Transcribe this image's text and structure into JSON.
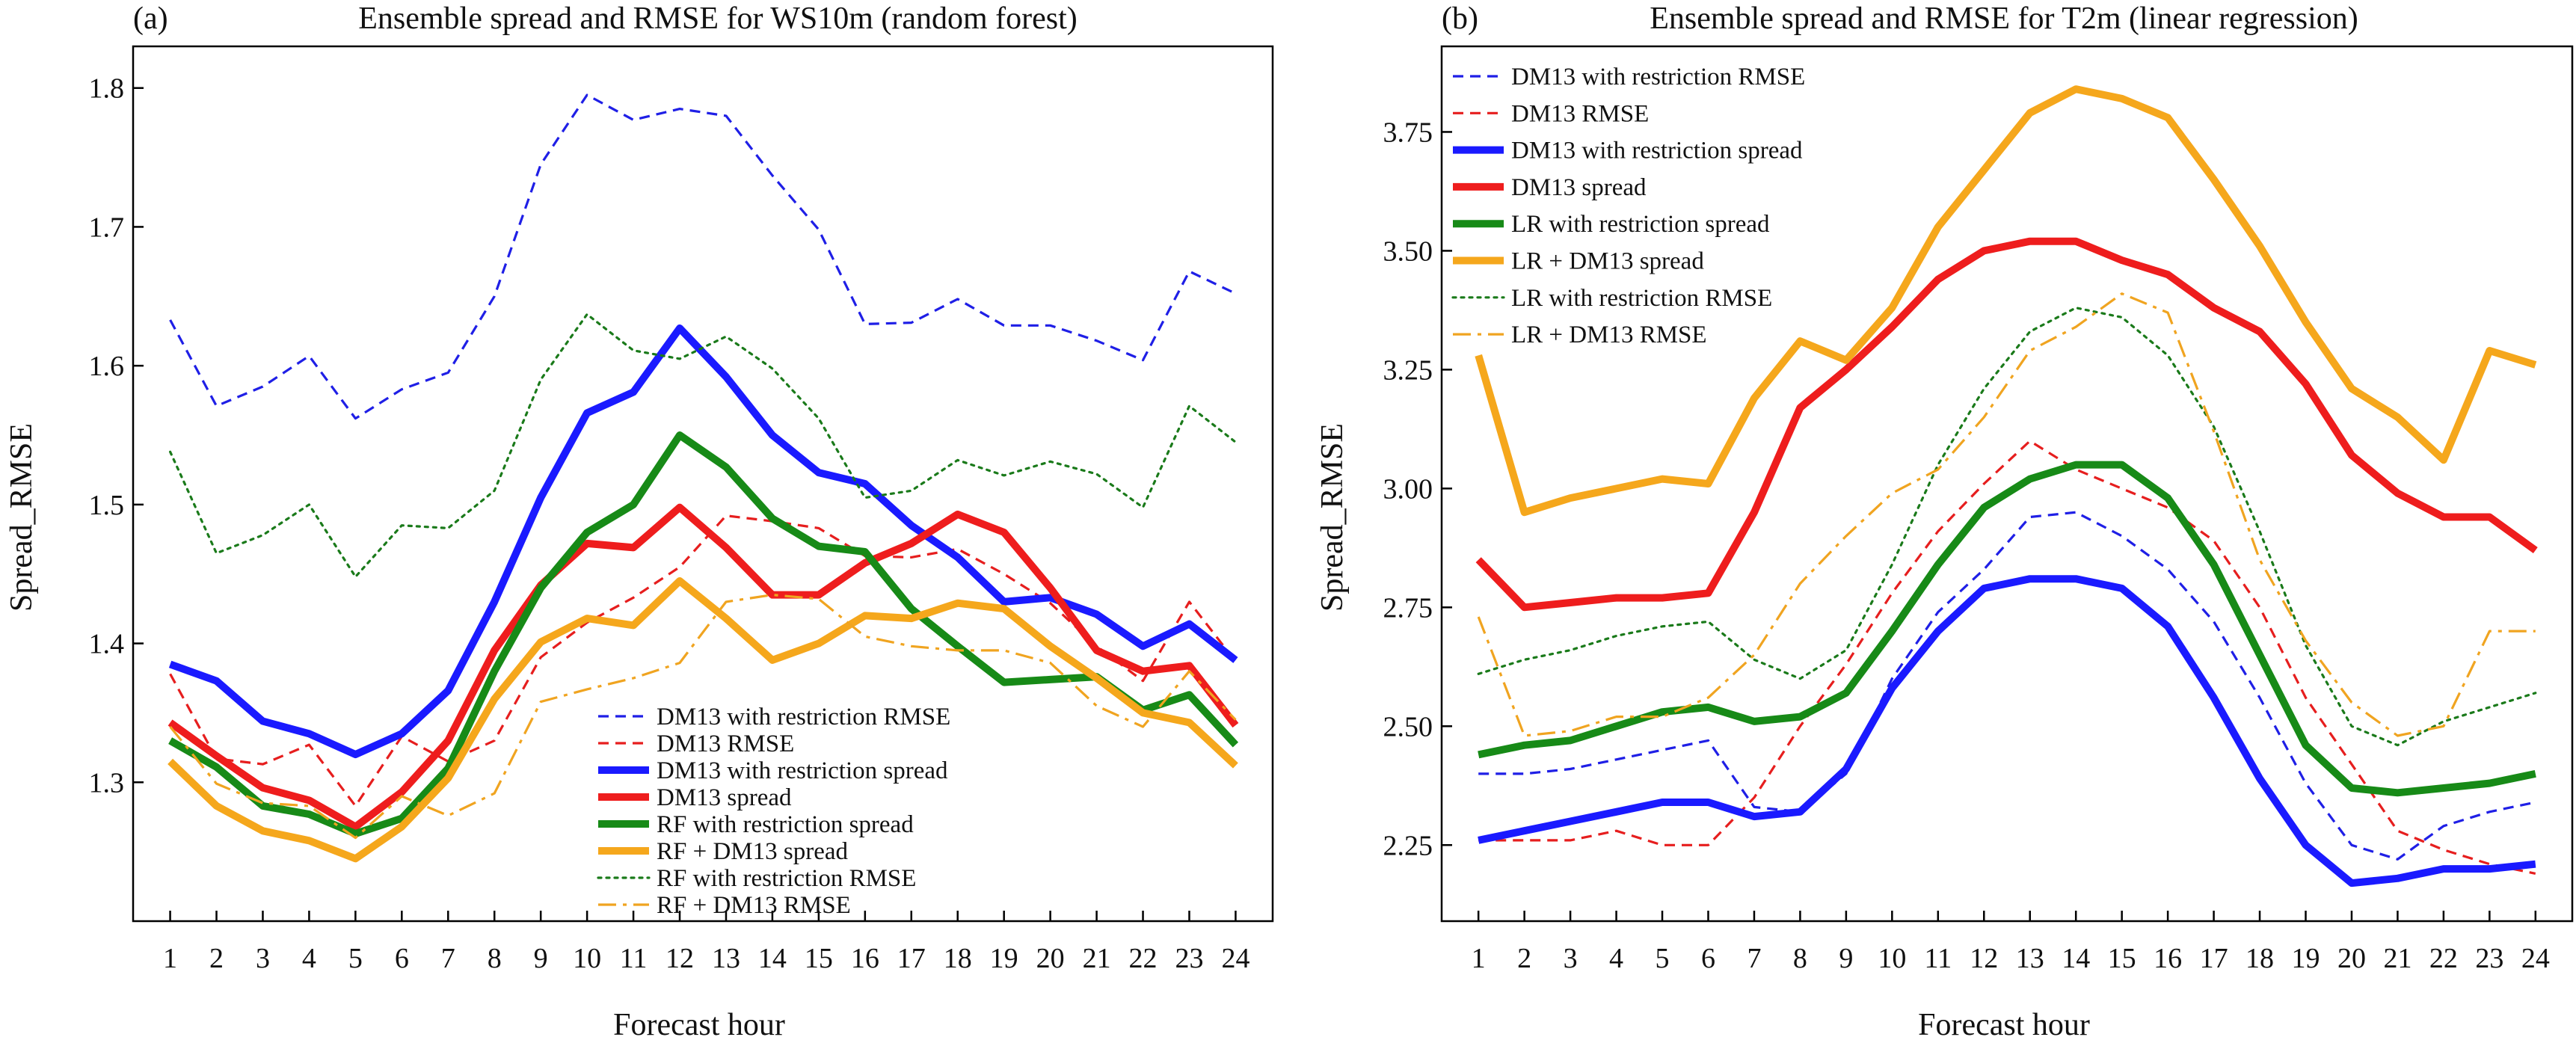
{
  "chart_data": [
    {
      "type": "line",
      "panel_label": "(a)",
      "title": "Ensemble spread and RMSE for WS10m (random forest)",
      "xlabel": "Forecast hour",
      "ylabel": "Spread_RMSE",
      "xlim": [
        0.2,
        24.8
      ],
      "ylim": [
        1.2,
        1.83
      ],
      "yticks": [
        1.3,
        1.4,
        1.5,
        1.6,
        1.7,
        1.8
      ],
      "ytick_labels": [
        "1.3",
        "1.4",
        "1.5",
        "1.6",
        "1.7",
        "1.8"
      ],
      "x": [
        1,
        2,
        3,
        4,
        5,
        6,
        7,
        8,
        9,
        10,
        11,
        12,
        13,
        14,
        15,
        16,
        17,
        18,
        19,
        20,
        21,
        22,
        23,
        24
      ],
      "xtick_labels": [
        "1",
        "2",
        "3",
        "4",
        "5",
        "6",
        "7",
        "8",
        "9",
        "10",
        "11",
        "12",
        "13",
        "14",
        "15",
        "16",
        "17",
        "18",
        "19",
        "20",
        "21",
        "22",
        "23",
        "24"
      ],
      "legend_position": "bottom-center",
      "grid": false,
      "series": [
        {
          "name": "DM13 with restriction RMSE",
          "color": "#1f1fe6",
          "style": "dashed",
          "weight": "thin",
          "values": [
            1.633,
            1.571,
            1.585,
            1.607,
            1.562,
            1.583,
            1.595,
            1.65,
            1.745,
            1.795,
            1.777,
            1.785,
            1.78,
            1.737,
            1.698,
            1.63,
            1.631,
            1.648,
            1.629,
            1.629,
            1.618,
            1.604,
            1.668,
            1.652
          ]
        },
        {
          "name": "DM13 RMSE",
          "color": "#e61e1e",
          "style": "dashed",
          "weight": "thin",
          "values": [
            1.378,
            1.317,
            1.313,
            1.327,
            1.283,
            1.333,
            1.315,
            1.33,
            1.39,
            1.415,
            1.433,
            1.455,
            1.492,
            1.488,
            1.483,
            1.463,
            1.462,
            1.468,
            1.45,
            1.429,
            1.398,
            1.373,
            1.43,
            1.387
          ]
        },
        {
          "name": "DM13 with restriction spread",
          "color": "#1a1aff",
          "style": "solid",
          "weight": "thick",
          "values": [
            1.385,
            1.373,
            1.344,
            1.335,
            1.32,
            1.335,
            1.366,
            1.43,
            1.505,
            1.566,
            1.581,
            1.627,
            1.592,
            1.55,
            1.523,
            1.515,
            1.485,
            1.462,
            1.43,
            1.433,
            1.421,
            1.398,
            1.414,
            1.388
          ]
        },
        {
          "name": "DM13 spread",
          "color": "#ee1d1d",
          "style": "solid",
          "weight": "thick",
          "values": [
            1.343,
            1.319,
            1.296,
            1.287,
            1.268,
            1.293,
            1.33,
            1.395,
            1.442,
            1.472,
            1.469,
            1.498,
            1.469,
            1.435,
            1.435,
            1.458,
            1.472,
            1.493,
            1.48,
            1.44,
            1.395,
            1.38,
            1.384,
            1.341
          ]
        },
        {
          "name": "RF with restriction spread",
          "color": "#178a17",
          "style": "solid",
          "weight": "thick",
          "values": [
            1.33,
            1.311,
            1.283,
            1.277,
            1.263,
            1.274,
            1.31,
            1.38,
            1.44,
            1.48,
            1.5,
            1.55,
            1.527,
            1.49,
            1.47,
            1.466,
            1.425,
            1.398,
            1.372,
            1.374,
            1.376,
            1.352,
            1.363,
            1.327
          ]
        },
        {
          "name": "RF + DM13 spread",
          "color": "#f5a71c",
          "style": "solid",
          "weight": "thick",
          "values": [
            1.315,
            1.283,
            1.265,
            1.258,
            1.245,
            1.268,
            1.303,
            1.36,
            1.401,
            1.418,
            1.413,
            1.445,
            1.418,
            1.388,
            1.4,
            1.42,
            1.418,
            1.429,
            1.425,
            1.398,
            1.375,
            1.35,
            1.343,
            1.312
          ]
        },
        {
          "name": "RF with restriction RMSE",
          "color": "#1a7a1a",
          "style": "dotted",
          "weight": "thin",
          "values": [
            1.538,
            1.465,
            1.478,
            1.5,
            1.448,
            1.485,
            1.483,
            1.51,
            1.59,
            1.637,
            1.611,
            1.605,
            1.621,
            1.598,
            1.562,
            1.505,
            1.51,
            1.532,
            1.521,
            1.531,
            1.522,
            1.498,
            1.571,
            1.545
          ]
        },
        {
          "name": "RF + DM13 RMSE",
          "color": "#f0a420",
          "style": "dashdot",
          "weight": "thin",
          "values": [
            1.34,
            1.299,
            1.285,
            1.283,
            1.26,
            1.29,
            1.276,
            1.292,
            1.358,
            1.367,
            1.375,
            1.386,
            1.43,
            1.435,
            1.432,
            1.405,
            1.398,
            1.395,
            1.395,
            1.386,
            1.355,
            1.34,
            1.38,
            1.345
          ]
        }
      ]
    },
    {
      "type": "line",
      "panel_label": "(b)",
      "title": "Ensemble spread and RMSE for T2m (linear regression)",
      "xlabel": "Forecast hour",
      "ylabel": "Spread_RMSE",
      "xlim": [
        0.2,
        24.8
      ],
      "ylim": [
        2.09,
        3.93
      ],
      "yticks": [
        2.25,
        2.5,
        2.75,
        3.0,
        3.25,
        3.5,
        3.75
      ],
      "ytick_labels": [
        "2.25",
        "2.50",
        "2.75",
        "3.00",
        "3.25",
        "3.50",
        "3.75"
      ],
      "x": [
        1,
        2,
        3,
        4,
        5,
        6,
        7,
        8,
        9,
        10,
        11,
        12,
        13,
        14,
        15,
        16,
        17,
        18,
        19,
        20,
        21,
        22,
        23,
        24
      ],
      "xtick_labels": [
        "1",
        "2",
        "3",
        "4",
        "5",
        "6",
        "7",
        "8",
        "9",
        "10",
        "11",
        "12",
        "13",
        "14",
        "15",
        "16",
        "17",
        "18",
        "19",
        "20",
        "21",
        "22",
        "23",
        "24"
      ],
      "legend_position": "top-left",
      "grid": false,
      "series": [
        {
          "name": "DM13 with restriction RMSE",
          "color": "#1f1fe6",
          "style": "dashed",
          "weight": "thin",
          "values": [
            2.4,
            2.4,
            2.41,
            2.43,
            2.45,
            2.47,
            2.33,
            2.32,
            2.4,
            2.6,
            2.74,
            2.83,
            2.94,
            2.95,
            2.9,
            2.83,
            2.72,
            2.56,
            2.38,
            2.25,
            2.22,
            2.29,
            2.32,
            2.34
          ]
        },
        {
          "name": "DM13 RMSE",
          "color": "#e61e1e",
          "style": "dashed",
          "weight": "thin",
          "values": [
            2.26,
            2.26,
            2.26,
            2.28,
            2.25,
            2.25,
            2.35,
            2.5,
            2.63,
            2.78,
            2.91,
            3.01,
            3.1,
            3.04,
            3.0,
            2.96,
            2.89,
            2.75,
            2.56,
            2.42,
            2.28,
            2.24,
            2.21,
            2.19
          ]
        },
        {
          "name": "DM13 with restriction spread",
          "color": "#1a1aff",
          "style": "solid",
          "weight": "thick",
          "values": [
            2.26,
            2.28,
            2.3,
            2.32,
            2.34,
            2.34,
            2.31,
            2.32,
            2.41,
            2.58,
            2.7,
            2.79,
            2.81,
            2.81,
            2.79,
            2.71,
            2.56,
            2.39,
            2.25,
            2.17,
            2.18,
            2.2,
            2.2,
            2.21
          ]
        },
        {
          "name": "DM13 spread",
          "color": "#ee1d1d",
          "style": "solid",
          "weight": "thick",
          "values": [
            2.85,
            2.75,
            2.76,
            2.77,
            2.77,
            2.78,
            2.95,
            3.17,
            3.25,
            3.34,
            3.44,
            3.5,
            3.52,
            3.52,
            3.48,
            3.45,
            3.38,
            3.33,
            3.22,
            3.07,
            2.99,
            2.94,
            2.94,
            2.87
          ]
        },
        {
          "name": "LR with restriction spread",
          "color": "#178a17",
          "style": "solid",
          "weight": "thick",
          "values": [
            2.44,
            2.46,
            2.47,
            2.5,
            2.53,
            2.54,
            2.51,
            2.52,
            2.57,
            2.7,
            2.84,
            2.96,
            3.02,
            3.05,
            3.05,
            2.98,
            2.84,
            2.65,
            2.46,
            2.37,
            2.36,
            2.37,
            2.38,
            2.4
          ]
        },
        {
          "name": "LR + DM13 spread",
          "color": "#f5a71c",
          "style": "solid",
          "weight": "thick",
          "values": [
            3.28,
            2.95,
            2.98,
            3.0,
            3.02,
            3.01,
            3.19,
            3.31,
            3.27,
            3.38,
            3.55,
            3.67,
            3.79,
            3.84,
            3.82,
            3.78,
            3.65,
            3.51,
            3.35,
            3.21,
            3.15,
            3.06,
            3.29,
            3.26
          ]
        },
        {
          "name": "LR with restriction RMSE",
          "color": "#1a7a1a",
          "style": "dotted",
          "weight": "thin",
          "values": [
            2.61,
            2.64,
            2.66,
            2.69,
            2.71,
            2.72,
            2.64,
            2.6,
            2.66,
            2.84,
            3.05,
            3.21,
            3.33,
            3.38,
            3.36,
            3.28,
            3.13,
            2.91,
            2.67,
            2.5,
            2.46,
            2.51,
            2.54,
            2.57
          ]
        },
        {
          "name": "LR + DM13 RMSE",
          "color": "#f0a420",
          "style": "dashdot",
          "weight": "thin",
          "values": [
            2.73,
            2.48,
            2.49,
            2.52,
            2.52,
            2.56,
            2.65,
            2.8,
            2.9,
            2.99,
            3.04,
            3.15,
            3.29,
            3.34,
            3.41,
            3.37,
            3.12,
            2.85,
            2.68,
            2.55,
            2.48,
            2.5,
            2.7,
            2.7
          ]
        }
      ]
    }
  ]
}
